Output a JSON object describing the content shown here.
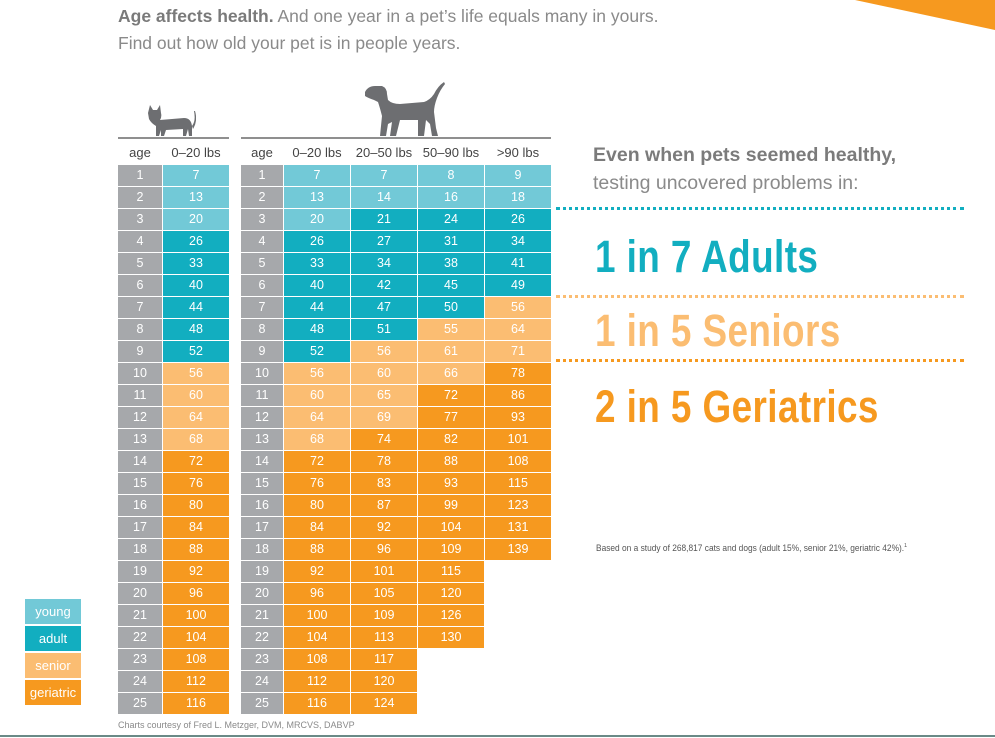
{
  "intro": {
    "bold": "Age affects health.",
    "rest": " And one year in a pet’s life equals many in yours.",
    "line2": "Find out how old your pet is in people years."
  },
  "colors": {
    "young": "#72c9d7",
    "adult": "#12aec0",
    "senior": "#fbbd72",
    "geriatric": "#f6991f",
    "age": "#a6a8ab",
    "corner": "#f6991f"
  },
  "chart_data": {
    "type": "table",
    "cat": {
      "icon": "cat-icon",
      "columns": [
        "age",
        "0–20 lbs"
      ],
      "rows": [
        [
          "1",
          "7",
          "young"
        ],
        [
          "2",
          "13",
          "young"
        ],
        [
          "3",
          "20",
          "young"
        ],
        [
          "4",
          "26",
          "adult"
        ],
        [
          "5",
          "33",
          "adult"
        ],
        [
          "6",
          "40",
          "adult"
        ],
        [
          "7",
          "44",
          "adult"
        ],
        [
          "8",
          "48",
          "adult"
        ],
        [
          "9",
          "52",
          "adult"
        ],
        [
          "10",
          "56",
          "senior"
        ],
        [
          "11",
          "60",
          "senior"
        ],
        [
          "12",
          "64",
          "senior"
        ],
        [
          "13",
          "68",
          "senior"
        ],
        [
          "14",
          "72",
          "geriatric"
        ],
        [
          "15",
          "76",
          "geriatric"
        ],
        [
          "16",
          "80",
          "geriatric"
        ],
        [
          "17",
          "84",
          "geriatric"
        ],
        [
          "18",
          "88",
          "geriatric"
        ],
        [
          "19",
          "92",
          "geriatric"
        ],
        [
          "20",
          "96",
          "geriatric"
        ],
        [
          "21",
          "100",
          "geriatric"
        ],
        [
          "22",
          "104",
          "geriatric"
        ],
        [
          "23",
          "108",
          "geriatric"
        ],
        [
          "24",
          "112",
          "geriatric"
        ],
        [
          "25",
          "116",
          "geriatric"
        ]
      ]
    },
    "dog": {
      "icon": "dog-icon",
      "columns": [
        "age",
        "0–20 lbs",
        "20–50 lbs",
        "50–90 lbs",
        ">90 lbs"
      ],
      "rows": [
        [
          [
            "1",
            ""
          ],
          [
            "7",
            "young"
          ],
          [
            "7",
            "young"
          ],
          [
            "8",
            "young"
          ],
          [
            "9",
            "young"
          ]
        ],
        [
          [
            "2",
            ""
          ],
          [
            "13",
            "young"
          ],
          [
            "14",
            "young"
          ],
          [
            "16",
            "young"
          ],
          [
            "18",
            "young"
          ]
        ],
        [
          [
            "3",
            ""
          ],
          [
            "20",
            "young"
          ],
          [
            "21",
            "adult"
          ],
          [
            "24",
            "adult"
          ],
          [
            "26",
            "adult"
          ]
        ],
        [
          [
            "4",
            ""
          ],
          [
            "26",
            "adult"
          ],
          [
            "27",
            "adult"
          ],
          [
            "31",
            "adult"
          ],
          [
            "34",
            "adult"
          ]
        ],
        [
          [
            "5",
            ""
          ],
          [
            "33",
            "adult"
          ],
          [
            "34",
            "adult"
          ],
          [
            "38",
            "adult"
          ],
          [
            "41",
            "adult"
          ]
        ],
        [
          [
            "6",
            ""
          ],
          [
            "40",
            "adult"
          ],
          [
            "42",
            "adult"
          ],
          [
            "45",
            "adult"
          ],
          [
            "49",
            "adult"
          ]
        ],
        [
          [
            "7",
            ""
          ],
          [
            "44",
            "adult"
          ],
          [
            "47",
            "adult"
          ],
          [
            "50",
            "adult"
          ],
          [
            "56",
            "senior"
          ]
        ],
        [
          [
            "8",
            ""
          ],
          [
            "48",
            "adult"
          ],
          [
            "51",
            "adult"
          ],
          [
            "55",
            "senior"
          ],
          [
            "64",
            "senior"
          ]
        ],
        [
          [
            "9",
            ""
          ],
          [
            "52",
            "adult"
          ],
          [
            "56",
            "senior"
          ],
          [
            "61",
            "senior"
          ],
          [
            "71",
            "senior"
          ]
        ],
        [
          [
            "10",
            ""
          ],
          [
            "56",
            "senior"
          ],
          [
            "60",
            "senior"
          ],
          [
            "66",
            "senior"
          ],
          [
            "78",
            "geriatric"
          ]
        ],
        [
          [
            "11",
            ""
          ],
          [
            "60",
            "senior"
          ],
          [
            "65",
            "senior"
          ],
          [
            "72",
            "geriatric"
          ],
          [
            "86",
            "geriatric"
          ]
        ],
        [
          [
            "12",
            ""
          ],
          [
            "64",
            "senior"
          ],
          [
            "69",
            "senior"
          ],
          [
            "77",
            "geriatric"
          ],
          [
            "93",
            "geriatric"
          ]
        ],
        [
          [
            "13",
            ""
          ],
          [
            "68",
            "senior"
          ],
          [
            "74",
            "geriatric"
          ],
          [
            "82",
            "geriatric"
          ],
          [
            "101",
            "geriatric"
          ]
        ],
        [
          [
            "14",
            ""
          ],
          [
            "72",
            "geriatric"
          ],
          [
            "78",
            "geriatric"
          ],
          [
            "88",
            "geriatric"
          ],
          [
            "108",
            "geriatric"
          ]
        ],
        [
          [
            "15",
            ""
          ],
          [
            "76",
            "geriatric"
          ],
          [
            "83",
            "geriatric"
          ],
          [
            "93",
            "geriatric"
          ],
          [
            "115",
            "geriatric"
          ]
        ],
        [
          [
            "16",
            ""
          ],
          [
            "80",
            "geriatric"
          ],
          [
            "87",
            "geriatric"
          ],
          [
            "99",
            "geriatric"
          ],
          [
            "123",
            "geriatric"
          ]
        ],
        [
          [
            "17",
            ""
          ],
          [
            "84",
            "geriatric"
          ],
          [
            "92",
            "geriatric"
          ],
          [
            "104",
            "geriatric"
          ],
          [
            "131",
            "geriatric"
          ]
        ],
        [
          [
            "18",
            ""
          ],
          [
            "88",
            "geriatric"
          ],
          [
            "96",
            "geriatric"
          ],
          [
            "109",
            "geriatric"
          ],
          [
            "139",
            "geriatric"
          ]
        ],
        [
          [
            "19",
            ""
          ],
          [
            "92",
            "geriatric"
          ],
          [
            "101",
            "geriatric"
          ],
          [
            "115",
            "geriatric"
          ],
          [
            "",
            ""
          ]
        ],
        [
          [
            "20",
            ""
          ],
          [
            "96",
            "geriatric"
          ],
          [
            "105",
            "geriatric"
          ],
          [
            "120",
            "geriatric"
          ],
          [
            "",
            ""
          ]
        ],
        [
          [
            "21",
            ""
          ],
          [
            "100",
            "geriatric"
          ],
          [
            "109",
            "geriatric"
          ],
          [
            "126",
            "geriatric"
          ],
          [
            "",
            ""
          ]
        ],
        [
          [
            "22",
            ""
          ],
          [
            "104",
            "geriatric"
          ],
          [
            "113",
            "geriatric"
          ],
          [
            "130",
            "geriatric"
          ],
          [
            "",
            ""
          ]
        ],
        [
          [
            "23",
            ""
          ],
          [
            "108",
            "geriatric"
          ],
          [
            "117",
            "geriatric"
          ],
          [
            "",
            ""
          ],
          [
            "",
            ""
          ]
        ],
        [
          [
            "24",
            ""
          ],
          [
            "112",
            "geriatric"
          ],
          [
            "120",
            "geriatric"
          ],
          [
            "",
            ""
          ],
          [
            "",
            ""
          ]
        ],
        [
          [
            "25",
            ""
          ],
          [
            "116",
            "geriatric"
          ],
          [
            "124",
            "geriatric"
          ],
          [
            "",
            ""
          ],
          [
            "",
            ""
          ]
        ]
      ]
    },
    "legend": [
      {
        "label": "young",
        "key": "young"
      },
      {
        "label": "adult",
        "key": "adult"
      },
      {
        "label": "senior",
        "key": "senior"
      },
      {
        "label": "geriatric",
        "key": "geriatric"
      }
    ]
  },
  "findings": {
    "headline_bold": "Even when pets seemed healthy,",
    "headline_rest": "testing uncovered problems in:",
    "stats": [
      {
        "text": "1 in 7 Adults",
        "key": "adult"
      },
      {
        "text": "1 in 5 Seniors",
        "key": "senior"
      },
      {
        "text": "2 in 5 Geriatrics",
        "key": "geriatric"
      }
    ],
    "note": "Based on a study of 268,817 cats and dogs (adult 15%, senior 21%, geriatric 42%).",
    "note_mark": "1"
  },
  "credit": "Charts courtesy of Fred L. Metzger, DVM, MRCVS, DABVP"
}
